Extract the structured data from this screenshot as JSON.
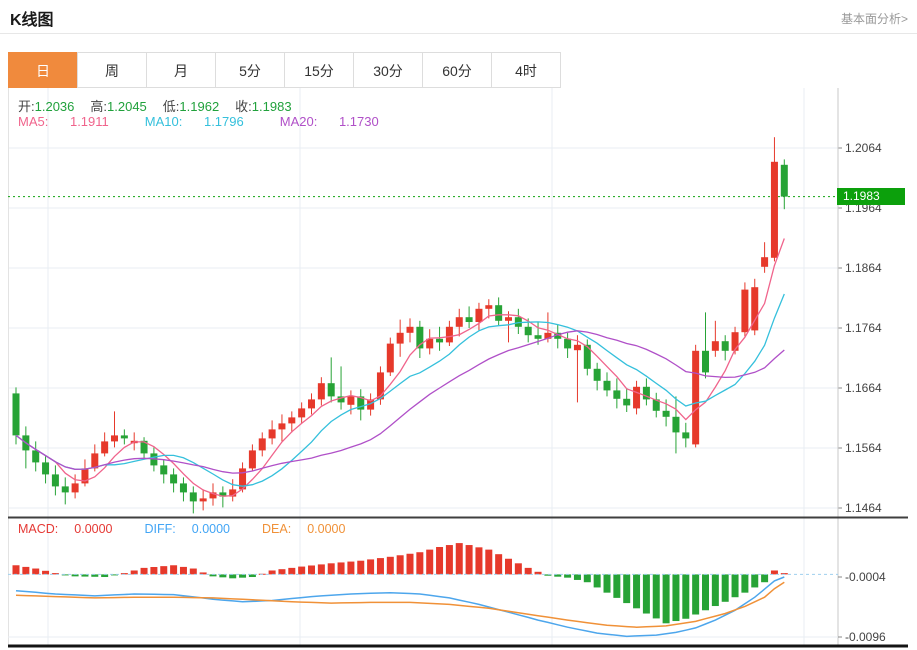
{
  "header": {
    "title": "K线图",
    "link": "基本面分析>"
  },
  "tabs": {
    "items": [
      {
        "label": "日",
        "active": true
      },
      {
        "label": "周",
        "active": false
      },
      {
        "label": "月",
        "active": false
      },
      {
        "label": "5分",
        "active": false
      },
      {
        "label": "15分",
        "active": false
      },
      {
        "label": "30分",
        "active": false
      },
      {
        "label": "60分",
        "active": false
      },
      {
        "label": "4时",
        "active": false
      }
    ]
  },
  "ohlc": {
    "open_label": "开:",
    "open": "1.2036",
    "high_label": "高:",
    "high": "1.2045",
    "low_label": "低:",
    "low": "1.1962",
    "close_label": "收:",
    "close": "1.1983"
  },
  "ma": {
    "ma5_label": "MA5:",
    "ma5": "1.1911",
    "ma10_label": "MA10:",
    "ma10": "1.1796",
    "ma20_label": "MA20:",
    "ma20": "1.1730"
  },
  "macd_panel": {
    "macd_label": "MACD:",
    "macd": "0.0000",
    "diff_label": "DIFF:",
    "diff": "0.0000",
    "dea_label": "DEA:",
    "dea": "0.0000",
    "axis_labels": [
      "-0.0004",
      "-0.0096"
    ]
  },
  "y_axis": {
    "labels": [
      "1.2064",
      "1.1964",
      "1.1864",
      "1.1764",
      "1.1664",
      "1.1564",
      "1.1464"
    ],
    "last_price": "1.1983"
  },
  "colors": {
    "up": "#e6392b",
    "down": "#27a336",
    "ma5": "#f0648c",
    "ma10": "#35c0dc",
    "ma20": "#b050c8",
    "diff_line": "#4da6ec",
    "dea_line": "#f09138",
    "tag_bg": "#0ca00c",
    "tab_active": "#f08a3d",
    "grid": "#e9eef3",
    "axis_line": "#c8c8c8",
    "dotted_price": "#12a312",
    "macd_zero": "#9ecfee"
  },
  "chart_data": {
    "type": "candlestick",
    "title": "K线图",
    "period": "日",
    "y_ticks": [
      1.2064,
      1.1964,
      1.1864,
      1.1764,
      1.1664,
      1.1564,
      1.1464
    ],
    "current_price": 1.1983,
    "last_ohlc": {
      "open": 1.2036,
      "high": 1.2045,
      "low": 1.1962,
      "close": 1.1983
    },
    "ma_values": {
      "MA5": 1.1911,
      "MA10": 1.1796,
      "MA20": 1.173
    },
    "macd_display": {
      "MACD": 0.0,
      "DIFF": 0.0,
      "DEA": 0.0
    },
    "macd_ticks": [
      -0.0004,
      -0.0096
    ],
    "candles": [
      [
        1.1655,
        1.1665,
        1.157,
        1.1585
      ],
      [
        1.1585,
        1.16,
        1.153,
        1.156
      ],
      [
        1.156,
        1.1575,
        1.1525,
        1.154
      ],
      [
        1.154,
        1.155,
        1.1505,
        1.152
      ],
      [
        1.152,
        1.1535,
        1.1485,
        1.15
      ],
      [
        1.15,
        1.1515,
        1.147,
        1.149
      ],
      [
        1.149,
        1.152,
        1.148,
        1.1505
      ],
      [
        1.1505,
        1.1545,
        1.15,
        1.153
      ],
      [
        1.153,
        1.157,
        1.1525,
        1.1555
      ],
      [
        1.1555,
        1.159,
        1.155,
        1.1575
      ],
      [
        1.1575,
        1.1625,
        1.1565,
        1.1585
      ],
      [
        1.1585,
        1.1595,
        1.157,
        1.158
      ],
      [
        1.1572,
        1.159,
        1.156,
        1.1576
      ],
      [
        1.1576,
        1.1582,
        1.1545,
        1.1555
      ],
      [
        1.1555,
        1.1565,
        1.1525,
        1.1535
      ],
      [
        1.1535,
        1.1545,
        1.1505,
        1.152
      ],
      [
        1.152,
        1.153,
        1.149,
        1.1505
      ],
      [
        1.1505,
        1.1515,
        1.1475,
        1.149
      ],
      [
        1.149,
        1.15,
        1.1455,
        1.1475
      ],
      [
        1.1475,
        1.1495,
        1.146,
        1.148
      ],
      [
        1.148,
        1.1505,
        1.1468,
        1.149
      ],
      [
        1.149,
        1.15,
        1.1465,
        1.1483
      ],
      [
        1.1483,
        1.1512,
        1.1475,
        1.1495
      ],
      [
        1.1495,
        1.154,
        1.149,
        1.153
      ],
      [
        1.153,
        1.157,
        1.1525,
        1.156
      ],
      [
        1.156,
        1.159,
        1.155,
        1.158
      ],
      [
        1.158,
        1.161,
        1.157,
        1.1595
      ],
      [
        1.1595,
        1.162,
        1.1575,
        1.1605
      ],
      [
        1.1605,
        1.1625,
        1.159,
        1.1615
      ],
      [
        1.1615,
        1.164,
        1.1605,
        1.163
      ],
      [
        1.163,
        1.1655,
        1.162,
        1.1645
      ],
      [
        1.1645,
        1.1682,
        1.1635,
        1.1672
      ],
      [
        1.1672,
        1.1715,
        1.164,
        1.165
      ],
      [
        1.165,
        1.17,
        1.1628,
        1.164
      ],
      [
        1.1636,
        1.166,
        1.162,
        1.165
      ],
      [
        1.165,
        1.1662,
        1.161,
        1.1628
      ],
      [
        1.1628,
        1.1655,
        1.1618,
        1.1645
      ],
      [
        1.1645,
        1.17,
        1.1636,
        1.169
      ],
      [
        1.169,
        1.1748,
        1.1684,
        1.1738
      ],
      [
        1.1738,
        1.1778,
        1.1716,
        1.1756
      ],
      [
        1.1756,
        1.178,
        1.174,
        1.1766
      ],
      [
        1.1766,
        1.1776,
        1.1714,
        1.173
      ],
      [
        1.173,
        1.1762,
        1.172,
        1.1746
      ],
      [
        1.1746,
        1.1766,
        1.1726,
        1.174
      ],
      [
        1.174,
        1.1776,
        1.1734,
        1.1766
      ],
      [
        1.1766,
        1.1796,
        1.175,
        1.1782
      ],
      [
        1.1782,
        1.18,
        1.1764,
        1.1774
      ],
      [
        1.1774,
        1.1806,
        1.176,
        1.1796
      ],
      [
        1.1796,
        1.1812,
        1.178,
        1.1802
      ],
      [
        1.1802,
        1.1815,
        1.1768,
        1.1776
      ],
      [
        1.1776,
        1.1792,
        1.174,
        1.1782
      ],
      [
        1.1782,
        1.1796,
        1.1754,
        1.1766
      ],
      [
        1.1766,
        1.178,
        1.174,
        1.1752
      ],
      [
        1.1752,
        1.1774,
        1.1736,
        1.1746
      ],
      [
        1.1746,
        1.179,
        1.174,
        1.1756
      ],
      [
        1.1756,
        1.177,
        1.173,
        1.1746
      ],
      [
        1.1746,
        1.1756,
        1.1714,
        1.173
      ],
      [
        1.1727,
        1.1752,
        1.164,
        1.1736
      ],
      [
        1.1736,
        1.1745,
        1.1685,
        1.1696
      ],
      [
        1.1696,
        1.1706,
        1.166,
        1.1676
      ],
      [
        1.1676,
        1.169,
        1.165,
        1.166
      ],
      [
        1.166,
        1.168,
        1.163,
        1.1646
      ],
      [
        1.1646,
        1.1664,
        1.1624,
        1.1635
      ],
      [
        1.163,
        1.1676,
        1.162,
        1.1666
      ],
      [
        1.1666,
        1.168,
        1.1635,
        1.1645
      ],
      [
        1.1645,
        1.1656,
        1.1615,
        1.1626
      ],
      [
        1.1626,
        1.1645,
        1.16,
        1.1616
      ],
      [
        1.1616,
        1.165,
        1.1555,
        1.159
      ],
      [
        1.159,
        1.1606,
        1.1565,
        1.158
      ],
      [
        1.157,
        1.1736,
        1.1565,
        1.1726
      ],
      [
        1.1726,
        1.179,
        1.168,
        1.169
      ],
      [
        1.1726,
        1.1776,
        1.1716,
        1.1742
      ],
      [
        1.1742,
        1.1752,
        1.171,
        1.1726
      ],
      [
        1.1726,
        1.1766,
        1.172,
        1.1757
      ],
      [
        1.1757,
        1.184,
        1.175,
        1.1828
      ],
      [
        1.176,
        1.1846,
        1.1752,
        1.1832
      ],
      [
        1.1866,
        1.1907,
        1.1856,
        1.1882
      ],
      [
        1.1881,
        1.2082,
        1.1875,
        1.2041
      ],
      [
        1.2036,
        1.2045,
        1.1962,
        1.1983
      ]
    ],
    "ma_periods": [
      5,
      10,
      20
    ],
    "macd": {
      "hist": [
        [
          0,
          0.0014
        ],
        [
          2,
          0.0009
        ],
        [
          4,
          0.0002
        ],
        [
          6,
          -0.0003
        ],
        [
          9,
          -0.0004
        ],
        [
          11,
          0.0002
        ],
        [
          13,
          0.001
        ],
        [
          16,
          0.0014
        ],
        [
          18,
          0.0009
        ],
        [
          20,
          -0.0003
        ],
        [
          22,
          -0.0006
        ],
        [
          24,
          -0.0004
        ],
        [
          26,
          0.0006
        ],
        [
          29,
          0.0012
        ],
        [
          32,
          0.0017
        ],
        [
          35,
          0.0021
        ],
        [
          38,
          0.0027
        ],
        [
          41,
          0.0034
        ],
        [
          43,
          0.0042
        ],
        [
          45,
          0.0048
        ],
        [
          46,
          0.0045
        ],
        [
          48,
          0.0038
        ],
        [
          50,
          0.0024
        ],
        [
          52,
          0.001
        ],
        [
          54,
          -0.0002
        ],
        [
          56,
          -0.0005
        ],
        [
          58,
          -0.0012
        ],
        [
          60,
          -0.0028
        ],
        [
          62,
          -0.0044
        ],
        [
          64,
          -0.006
        ],
        [
          66,
          -0.0075
        ],
        [
          68,
          -0.0068
        ],
        [
          70,
          -0.0055
        ],
        [
          72,
          -0.0042
        ],
        [
          74,
          -0.0028
        ],
        [
          75,
          -0.002
        ],
        [
          76,
          -0.0012
        ],
        [
          77,
          0.0006
        ],
        [
          78,
          0.0002
        ]
      ],
      "diff": [
        [
          0,
          -0.0025
        ],
        [
          4,
          -0.003
        ],
        [
          8,
          -0.0033
        ],
        [
          12,
          -0.003
        ],
        [
          16,
          -0.0031
        ],
        [
          20,
          -0.0038
        ],
        [
          23,
          -0.0042
        ],
        [
          26,
          -0.004
        ],
        [
          30,
          -0.0034
        ],
        [
          34,
          -0.003
        ],
        [
          38,
          -0.0028
        ],
        [
          41,
          -0.003
        ],
        [
          44,
          -0.0036
        ],
        [
          47,
          -0.0046
        ],
        [
          50,
          -0.0058
        ],
        [
          53,
          -0.007
        ],
        [
          56,
          -0.0081
        ],
        [
          59,
          -0.009
        ],
        [
          62,
          -0.0095
        ],
        [
          65,
          -0.0093
        ],
        [
          67,
          -0.0089
        ],
        [
          69,
          -0.0082
        ],
        [
          71,
          -0.007
        ],
        [
          73,
          -0.0055
        ],
        [
          75,
          -0.0035
        ],
        [
          77,
          -0.001
        ],
        [
          78,
          -0.0004
        ]
      ],
      "dea": [
        [
          0,
          -0.0032
        ],
        [
          4,
          -0.0034
        ],
        [
          8,
          -0.0036
        ],
        [
          12,
          -0.0035
        ],
        [
          16,
          -0.0035
        ],
        [
          20,
          -0.0036
        ],
        [
          24,
          -0.0039
        ],
        [
          28,
          -0.0042
        ],
        [
          32,
          -0.0044
        ],
        [
          36,
          -0.0043
        ],
        [
          40,
          -0.0043
        ],
        [
          44,
          -0.0046
        ],
        [
          48,
          -0.0052
        ],
        [
          52,
          -0.0061
        ],
        [
          56,
          -0.007
        ],
        [
          60,
          -0.0078
        ],
        [
          63,
          -0.0081
        ],
        [
          66,
          -0.0079
        ],
        [
          69,
          -0.0072
        ],
        [
          72,
          -0.006
        ],
        [
          74,
          -0.0049
        ],
        [
          76,
          -0.0035
        ],
        [
          77,
          -0.0022
        ],
        [
          78,
          -0.0012
        ]
      ]
    }
  }
}
